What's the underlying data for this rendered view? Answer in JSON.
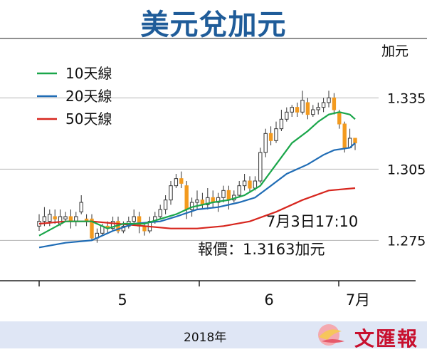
{
  "chart_data": {
    "type": "candlestick",
    "title": "美元兌加元",
    "unit_label": "加元",
    "x_tick_labels": [
      "5",
      "6",
      "7月"
    ],
    "x_period_label": "2018年",
    "y_ticks": [
      1.275,
      1.305,
      1.335
    ],
    "y_tick_labels": [
      "1.275",
      "1.305",
      "1.335"
    ],
    "ylim": [
      1.258,
      1.36
    ],
    "grid": "horizontal",
    "legend_position": "top-left",
    "colors": {
      "up": "#ffffff",
      "down": "#f39a1e",
      "ma10": "#1aa64a",
      "ma20": "#1f6cb5",
      "ma50": "#d7261e",
      "title": "#1f5c99"
    },
    "series": [
      {
        "name": "10天線",
        "color": "#1aa64a"
      },
      {
        "name": "20天線",
        "color": "#1f6cb5"
      },
      {
        "name": "50天線",
        "color": "#d7261e"
      }
    ],
    "candles": [
      [
        1.281,
        1.283,
        1.279,
        1.286
      ],
      [
        1.283,
        1.285,
        1.281,
        1.289
      ],
      [
        1.283,
        1.286,
        1.281,
        1.288
      ],
      [
        1.285,
        1.284,
        1.282,
        1.288
      ],
      [
        1.282,
        1.285,
        1.281,
        1.288
      ],
      [
        1.284,
        1.285,
        1.283,
        1.287
      ],
      [
        1.285,
        1.283,
        1.28,
        1.288
      ],
      [
        1.283,
        1.285,
        1.281,
        1.287
      ],
      [
        1.287,
        1.291,
        1.286,
        1.294
      ],
      [
        1.284,
        1.283,
        1.281,
        1.286
      ],
      [
        1.284,
        1.276,
        1.275,
        1.286
      ],
      [
        1.276,
        1.278,
        1.274,
        1.28
      ],
      [
        1.278,
        1.281,
        1.277,
        1.282
      ],
      [
        1.281,
        1.28,
        1.278,
        1.283
      ],
      [
        1.28,
        1.283,
        1.279,
        1.285
      ],
      [
        1.283,
        1.279,
        1.278,
        1.285
      ],
      [
        1.279,
        1.281,
        1.278,
        1.283
      ],
      [
        1.281,
        1.283,
        1.28,
        1.285
      ],
      [
        1.283,
        1.285,
        1.282,
        1.288
      ],
      [
        1.285,
        1.281,
        1.278,
        1.287
      ],
      [
        1.281,
        1.279,
        1.277,
        1.282
      ],
      [
        1.279,
        1.283,
        1.278,
        1.285
      ],
      [
        1.283,
        1.285,
        1.282,
        1.287
      ],
      [
        1.285,
        1.288,
        1.284,
        1.29
      ],
      [
        1.288,
        1.292,
        1.286,
        1.294
      ],
      [
        1.292,
        1.298,
        1.29,
        1.3
      ],
      [
        1.298,
        1.301,
        1.297,
        1.303
      ],
      [
        1.301,
        1.299,
        1.297,
        1.304
      ],
      [
        1.298,
        1.288,
        1.284,
        1.3
      ],
      [
        1.288,
        1.291,
        1.285,
        1.293
      ],
      [
        1.291,
        1.292,
        1.288,
        1.296
      ],
      [
        1.292,
        1.29,
        1.288,
        1.295
      ],
      [
        1.29,
        1.293,
        1.288,
        1.297
      ],
      [
        1.293,
        1.291,
        1.289,
        1.296
      ],
      [
        1.291,
        1.293,
        1.287,
        1.295
      ],
      [
        1.293,
        1.296,
        1.291,
        1.298
      ],
      [
        1.296,
        1.292,
        1.288,
        1.298
      ],
      [
        1.292,
        1.294,
        1.291,
        1.296
      ],
      [
        1.294,
        1.298,
        1.293,
        1.3
      ],
      [
        1.298,
        1.3,
        1.296,
        1.303
      ],
      [
        1.3,
        1.297,
        1.295,
        1.302
      ],
      [
        1.297,
        1.3,
        1.296,
        1.302
      ],
      [
        1.3,
        1.312,
        1.299,
        1.314
      ],
      [
        1.312,
        1.32,
        1.31,
        1.322
      ],
      [
        1.32,
        1.317,
        1.315,
        1.323
      ],
      [
        1.317,
        1.322,
        1.316,
        1.325
      ],
      [
        1.322,
        1.326,
        1.321,
        1.33
      ],
      [
        1.326,
        1.329,
        1.325,
        1.331
      ],
      [
        1.329,
        1.331,
        1.327,
        1.332
      ],
      [
        1.331,
        1.329,
        1.327,
        1.333
      ],
      [
        1.329,
        1.334,
        1.328,
        1.338
      ],
      [
        1.333,
        1.328,
        1.326,
        1.335
      ],
      [
        1.328,
        1.33,
        1.327,
        1.332
      ],
      [
        1.33,
        1.331,
        1.328,
        1.333
      ],
      [
        1.331,
        1.333,
        1.329,
        1.335
      ],
      [
        1.333,
        1.335,
        1.331,
        1.338
      ],
      [
        1.335,
        1.33,
        1.328,
        1.337
      ],
      [
        1.329,
        1.324,
        1.322,
        1.33
      ],
      [
        1.324,
        1.314,
        1.312,
        1.325
      ],
      [
        1.314,
        1.318,
        1.314,
        1.322
      ],
      [
        1.318,
        1.316,
        1.313,
        1.318
      ]
    ],
    "ma10": [
      [
        0,
        1.277
      ],
      [
        5,
        1.283
      ],
      [
        10,
        1.283
      ],
      [
        13,
        1.28
      ],
      [
        16,
        1.282
      ],
      [
        20,
        1.282
      ],
      [
        23,
        1.284
      ],
      [
        26,
        1.286
      ],
      [
        29,
        1.289
      ],
      [
        33,
        1.291
      ],
      [
        36,
        1.292
      ],
      [
        39,
        1.294
      ],
      [
        42,
        1.298
      ],
      [
        45,
        1.307
      ],
      [
        48,
        1.316
      ],
      [
        51,
        1.321
      ],
      [
        53,
        1.325
      ],
      [
        55,
        1.328
      ],
      [
        57,
        1.329
      ],
      [
        59,
        1.328
      ],
      [
        60,
        1.326
      ]
    ],
    "ma20": [
      [
        0,
        1.272
      ],
      [
        5,
        1.274
      ],
      [
        10,
        1.275
      ],
      [
        14,
        1.279
      ],
      [
        18,
        1.282
      ],
      [
        23,
        1.283
      ],
      [
        26,
        1.285
      ],
      [
        30,
        1.288
      ],
      [
        34,
        1.289
      ],
      [
        38,
        1.291
      ],
      [
        41,
        1.293
      ],
      [
        44,
        1.298
      ],
      [
        47,
        1.303
      ],
      [
        51,
        1.307
      ],
      [
        54,
        1.311
      ],
      [
        56,
        1.313
      ],
      [
        59,
        1.314
      ],
      [
        60,
        1.316
      ]
    ],
    "ma50": [
      [
        0,
        1.282
      ],
      [
        5,
        1.283
      ],
      [
        10,
        1.283
      ],
      [
        15,
        1.282
      ],
      [
        20,
        1.281
      ],
      [
        25,
        1.28
      ],
      [
        30,
        1.28
      ],
      [
        35,
        1.281
      ],
      [
        40,
        1.283
      ],
      [
        45,
        1.287
      ],
      [
        50,
        1.292
      ],
      [
        55,
        1.296
      ],
      [
        60,
        1.297
      ]
    ],
    "annotation": {
      "label": "7月3日17:10",
      "quote": "報價：1.3163加元"
    }
  },
  "footer": {
    "publisher": "文匯報"
  }
}
